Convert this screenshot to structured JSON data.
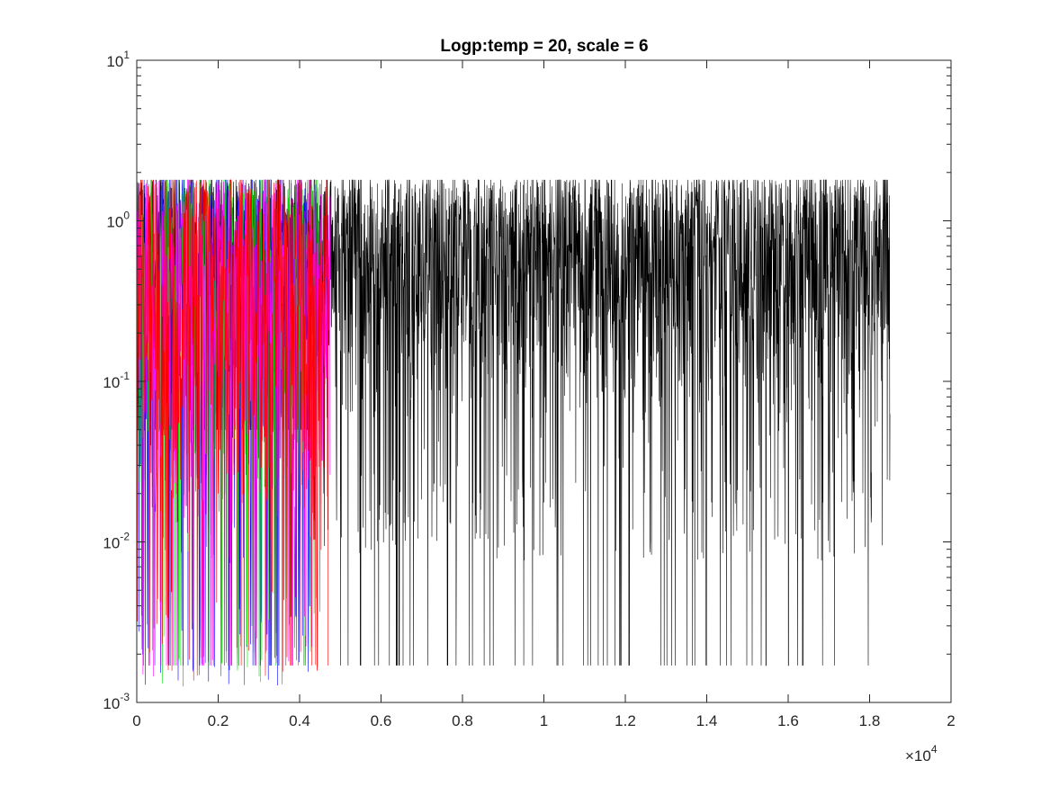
{
  "chart_data": {
    "type": "line",
    "title": "Logp:temp = 20, scale = 6",
    "xlabel": "",
    "ylabel": "",
    "x_exponent_label": "×10",
    "x_exponent_power": "4",
    "xlim": [
      0,
      20000
    ],
    "ylim": [
      0.001,
      10
    ],
    "yscale": "log",
    "grid": false,
    "box": true,
    "x_ticks": [
      0,
      2000,
      4000,
      6000,
      8000,
      10000,
      12000,
      14000,
      16000,
      18000,
      20000
    ],
    "x_tick_labels": [
      "0",
      "0.2",
      "0.4",
      "0.6",
      "0.8",
      "1",
      "1.2",
      "1.4",
      "1.6",
      "1.8",
      "2"
    ],
    "y_ticks": [
      {
        "value": 0.001,
        "base": "10",
        "exp": "-3"
      },
      {
        "value": 0.01,
        "base": "10",
        "exp": "-2"
      },
      {
        "value": 0.1,
        "base": "10",
        "exp": "-1"
      },
      {
        "value": 1,
        "base": "10",
        "exp": "0"
      },
      {
        "value": 10,
        "base": "10",
        "exp": "1"
      }
    ],
    "series": [
      {
        "color": "#0000ff",
        "x_end": 4400,
        "y_max": 1.8,
        "y_min_typical": 0.005,
        "y_floor": 0.0017
      },
      {
        "color": "#00e000",
        "x_end": 4500,
        "y_max": 1.8,
        "y_min_typical": 0.005,
        "y_floor": 0.0017
      },
      {
        "color": "#ff0000",
        "x_end": 4700,
        "y_max": 1.8,
        "y_min_typical": 0.005,
        "y_floor": 0.0017
      },
      {
        "color": "#ff00ff",
        "x_end": 4750,
        "y_max": 1.8,
        "y_min_typical": 0.005,
        "y_floor": 0.0017
      },
      {
        "color": "#000000",
        "x_end": 18500,
        "y_max": 1.8,
        "y_min_typical": 0.03,
        "y_floor": 0.0017
      }
    ]
  }
}
